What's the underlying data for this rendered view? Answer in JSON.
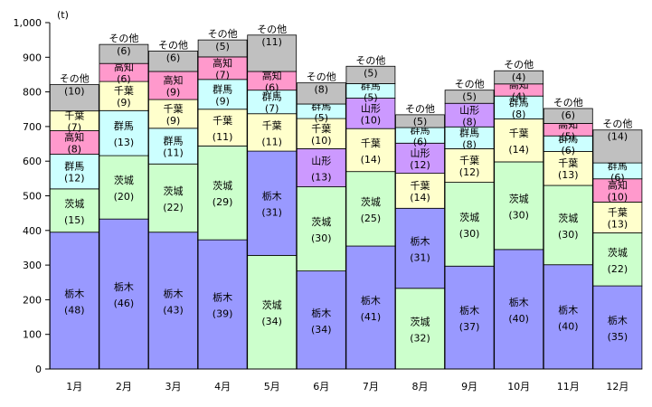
{
  "chart_data": {
    "type": "bar",
    "stacked": true,
    "unit_label": "(t)",
    "ylim": [
      0,
      1000
    ],
    "yticks": [
      "0",
      "100",
      "200",
      "300",
      "400",
      "500",
      "600",
      "700",
      "800",
      "900",
      "1,000"
    ],
    "grid": false,
    "categories": [
      "1月",
      "2月",
      "3月",
      "4月",
      "5月",
      "6月",
      "7月",
      "8月",
      "9月",
      "10月",
      "11月",
      "12月"
    ],
    "colors": {
      "栃木": "#9999ff",
      "茨城": "#ccffcc",
      "群馬": "#ccffff",
      "高知": "#ff99cc",
      "千葉": "#ffffcc",
      "山形": "#cc99ff",
      "その他": "#c0c0c0"
    },
    "bars": [
      {
        "total": 821,
        "segments": [
          {
            "name": "栃木",
            "pct": "(48)",
            "value": 395
          },
          {
            "name": "茨城",
            "pct": "(15)",
            "value": 125
          },
          {
            "name": "群馬",
            "pct": "(12)",
            "value": 100
          },
          {
            "name": "高知",
            "pct": "(8)",
            "value": 68
          },
          {
            "name": "千葉",
            "pct": "(7)",
            "value": 57
          },
          {
            "name": "その他",
            "pct": "(10)",
            "value": 76
          }
        ]
      },
      {
        "total": 937,
        "segments": [
          {
            "name": "栃木",
            "pct": "(46)",
            "value": 433
          },
          {
            "name": "茨城",
            "pct": "(20)",
            "value": 183
          },
          {
            "name": "群馬",
            "pct": "(13)",
            "value": 130
          },
          {
            "name": "千葉",
            "pct": "(9)",
            "value": 84
          },
          {
            "name": "高知",
            "pct": "(6)",
            "value": 52
          },
          {
            "name": "その他",
            "pct": "(6)",
            "value": 55
          }
        ]
      },
      {
        "total": 918,
        "segments": [
          {
            "name": "栃木",
            "pct": "(43)",
            "value": 395
          },
          {
            "name": "茨城",
            "pct": "(22)",
            "value": 197
          },
          {
            "name": "群馬",
            "pct": "(11)",
            "value": 103
          },
          {
            "name": "千葉",
            "pct": "(9)",
            "value": 83
          },
          {
            "name": "高知",
            "pct": "(9)",
            "value": 81
          },
          {
            "name": "その他",
            "pct": "(6)",
            "value": 59
          }
        ]
      },
      {
        "total": 950,
        "segments": [
          {
            "name": "栃木",
            "pct": "(39)",
            "value": 373
          },
          {
            "name": "茨城",
            "pct": "(29)",
            "value": 271
          },
          {
            "name": "千葉",
            "pct": "(11)",
            "value": 106
          },
          {
            "name": "群馬",
            "pct": "(9)",
            "value": 86
          },
          {
            "name": "高知",
            "pct": "(7)",
            "value": 65
          },
          {
            "name": "その他",
            "pct": "(5)",
            "value": 49
          }
        ]
      },
      {
        "total": 964,
        "segments": [
          {
            "name": "茨城",
            "pct": "(34)",
            "value": 328
          },
          {
            "name": "栃木",
            "pct": "(31)",
            "value": 301
          },
          {
            "name": "千葉",
            "pct": "(11)",
            "value": 108
          },
          {
            "name": "群馬",
            "pct": "(7)",
            "value": 68
          },
          {
            "name": "高知",
            "pct": "(6)",
            "value": 54
          },
          {
            "name": "その他",
            "pct": "(11)",
            "value": 105
          }
        ]
      },
      {
        "total": 826,
        "segments": [
          {
            "name": "栃木",
            "pct": "(34)",
            "value": 283
          },
          {
            "name": "茨城",
            "pct": "(30)",
            "value": 243
          },
          {
            "name": "山形",
            "pct": "(13)",
            "value": 110
          },
          {
            "name": "千葉",
            "pct": "(10)",
            "value": 87
          },
          {
            "name": "群馬",
            "pct": "(5)",
            "value": 42
          },
          {
            "name": "その他",
            "pct": "(8)",
            "value": 61
          }
        ]
      },
      {
        "total": 874,
        "segments": [
          {
            "name": "栃木",
            "pct": "(41)",
            "value": 355
          },
          {
            "name": "茨城",
            "pct": "(25)",
            "value": 215
          },
          {
            "name": "千葉",
            "pct": "(14)",
            "value": 124
          },
          {
            "name": "山形",
            "pct": "(10)",
            "value": 88
          },
          {
            "name": "群馬",
            "pct": "(5)",
            "value": 42
          },
          {
            "name": "その他",
            "pct": "(5)",
            "value": 50
          }
        ]
      },
      {
        "total": 734,
        "segments": [
          {
            "name": "茨城",
            "pct": "(32)",
            "value": 233
          },
          {
            "name": "栃木",
            "pct": "(31)",
            "value": 231
          },
          {
            "name": "千葉",
            "pct": "(14)",
            "value": 101
          },
          {
            "name": "山形",
            "pct": "(12)",
            "value": 87
          },
          {
            "name": "群馬",
            "pct": "(6)",
            "value": 45
          },
          {
            "name": "その他",
            "pct": "(5)",
            "value": 37
          }
        ]
      },
      {
        "total": 805,
        "segments": [
          {
            "name": "栃木",
            "pct": "(37)",
            "value": 297
          },
          {
            "name": "茨城",
            "pct": "(30)",
            "value": 242
          },
          {
            "name": "千葉",
            "pct": "(12)",
            "value": 97
          },
          {
            "name": "群馬",
            "pct": "(8)",
            "value": 63
          },
          {
            "name": "山形",
            "pct": "(8)",
            "value": 68
          },
          {
            "name": "その他",
            "pct": "(5)",
            "value": 38
          }
        ]
      },
      {
        "total": 861,
        "segments": [
          {
            "name": "栃木",
            "pct": "(40)",
            "value": 345
          },
          {
            "name": "茨城",
            "pct": "(30)",
            "value": 253
          },
          {
            "name": "千葉",
            "pct": "(14)",
            "value": 124
          },
          {
            "name": "群馬",
            "pct": "(8)",
            "value": 66
          },
          {
            "name": "高知",
            "pct": "(4)",
            "value": 35
          },
          {
            "name": "その他",
            "pct": "(4)",
            "value": 38
          }
        ]
      },
      {
        "total": 752,
        "segments": [
          {
            "name": "栃木",
            "pct": "(40)",
            "value": 301
          },
          {
            "name": "茨城",
            "pct": "(30)",
            "value": 229
          },
          {
            "name": "千葉",
            "pct": "(13)",
            "value": 98
          },
          {
            "name": "群馬",
            "pct": "(6)",
            "value": 45
          },
          {
            "name": "高知",
            "pct": "(5)",
            "value": 36
          },
          {
            "name": "その他",
            "pct": "(6)",
            "value": 43
          }
        ]
      },
      {
        "total": 690,
        "segments": [
          {
            "name": "栃木",
            "pct": "(35)",
            "value": 240
          },
          {
            "name": "茨城",
            "pct": "(22)",
            "value": 153
          },
          {
            "name": "千葉",
            "pct": "(13)",
            "value": 89
          },
          {
            "name": "高知",
            "pct": "(10)",
            "value": 67
          },
          {
            "name": "群馬",
            "pct": "(6)",
            "value": 46
          },
          {
            "name": "その他",
            "pct": "(14)",
            "value": 95
          }
        ]
      }
    ]
  }
}
